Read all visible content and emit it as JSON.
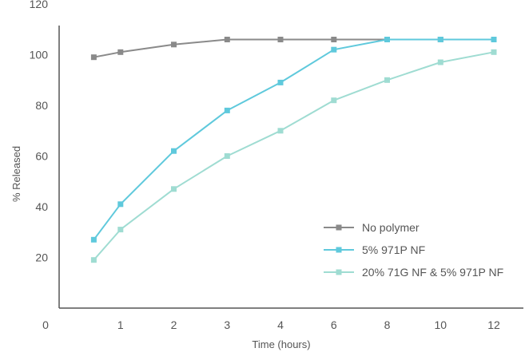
{
  "chart_data": {
    "type": "line",
    "title": "",
    "xlabel": "Time (hours)",
    "ylabel": "% Released",
    "x_tick_labels": [
      "0",
      "1",
      "2",
      "3",
      "4",
      "6",
      "8",
      "10",
      "12"
    ],
    "y_ticks": [
      20,
      40,
      60,
      80,
      100,
      120
    ],
    "ylim": [
      0,
      120
    ],
    "x_points": [
      0.5,
      1,
      2,
      3,
      4,
      5,
      6,
      7,
      8
    ],
    "grid": false,
    "legend_position": "bottom-right",
    "series": [
      {
        "name": "No polymer",
        "color": "#8a8a8a",
        "values": [
          99,
          101,
          104,
          106,
          106,
          106,
          106,
          106,
          106
        ]
      },
      {
        "name": "5% 971P NF",
        "color": "#5fc9dc",
        "values": [
          27,
          41,
          62,
          78,
          89,
          102,
          106,
          106,
          106
        ]
      },
      {
        "name": "20% 71G NF & 5% 971P NF",
        "color": "#9fdcd2",
        "values": [
          19,
          31,
          47,
          60,
          70,
          82,
          90,
          97,
          101
        ]
      }
    ]
  }
}
